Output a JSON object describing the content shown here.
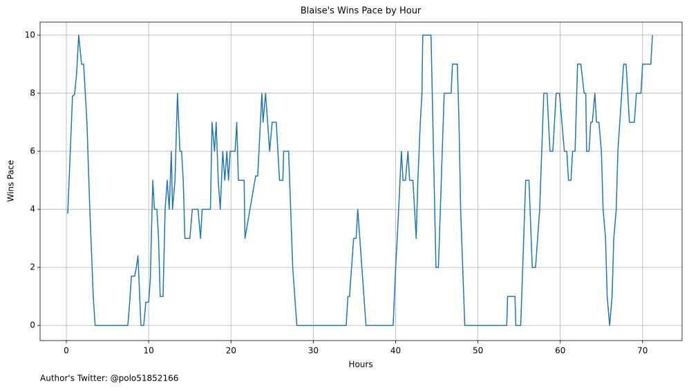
{
  "chart_data": {
    "type": "line",
    "title": "Blaise's Wins Pace by Hour",
    "xlabel": "Hours",
    "ylabel": "Wins Pace",
    "footer": "Author's Twitter: @polo51852166",
    "color": "#1f77b4",
    "grid": true,
    "x": [
      0.17,
      0.75,
      1.0,
      1.25,
      1.5,
      1.85,
      2.1,
      2.5,
      2.85,
      3.27,
      3.5,
      7.47,
      7.7,
      7.9,
      8.3,
      8.5,
      8.7,
      9.06,
      9.4,
      9.65,
      10.0,
      10.2,
      10.5,
      10.7,
      11.0,
      11.2,
      11.4,
      11.75,
      12.0,
      12.25,
      12.5,
      12.75,
      12.9,
      13.2,
      13.5,
      13.8,
      14.0,
      14.2,
      14.4,
      15.0,
      15.3,
      16.0,
      16.3,
      16.5,
      17.5,
      17.7,
      18.0,
      18.2,
      18.45,
      18.7,
      19.0,
      19.25,
      19.5,
      19.7,
      19.9,
      20.5,
      20.7,
      20.9,
      21.6,
      21.7,
      23.0,
      23.25,
      23.75,
      23.9,
      24.2,
      24.7,
      25.0,
      25.5,
      25.9,
      26.3,
      26.4,
      27.0,
      27.5,
      28.0,
      34.0,
      34.2,
      34.4,
      34.9,
      35.2,
      35.4,
      36.4,
      39.7,
      40.0,
      40.2,
      40.7,
      40.9,
      41.2,
      41.5,
      41.7,
      42.1,
      42.5,
      42.7,
      43.0,
      43.2,
      43.3,
      44.3,
      44.9,
      45.2,
      45.9,
      46.75,
      46.9,
      47.5,
      47.7,
      47.9,
      48.4,
      53.5,
      53.6,
      54.5,
      54.6,
      55.2,
      55.8,
      56.2,
      56.6,
      57.0,
      57.5,
      58.0,
      58.4,
      58.75,
      59.1,
      59.5,
      59.9,
      60.5,
      60.8,
      61.0,
      61.3,
      61.5,
      61.8,
      62.1,
      62.5,
      62.9,
      63.1,
      63.2,
      63.5,
      63.7,
      63.9,
      64.2,
      64.4,
      64.7,
      65.0,
      65.2,
      65.5,
      65.7,
      66.0,
      66.3,
      66.5,
      66.8,
      67.0,
      67.7,
      68.0,
      68.4,
      69.0,
      69.25,
      69.8,
      70.0,
      71.0,
      71.2
    ],
    "values": [
      3.85,
      7.9,
      7.95,
      8.7,
      10,
      9,
      9,
      7,
      4,
      1,
      0,
      0,
      0.8,
      1.7,
      1.7,
      2,
      2.4,
      0,
      0,
      0.8,
      0.8,
      1.6,
      5,
      4,
      4,
      3,
      1,
      1,
      4,
      5,
      4,
      6,
      4,
      5,
      8,
      6,
      6,
      5,
      3,
      3,
      4,
      4,
      3,
      4,
      4,
      7,
      6,
      7,
      5,
      4,
      6,
      5,
      6,
      5,
      6,
      6,
      7,
      5,
      5,
      3,
      5.15,
      5.15,
      8,
      7,
      8,
      6,
      7,
      7,
      5,
      5,
      6,
      6,
      2,
      0,
      0,
      1,
      1,
      3,
      3,
      4,
      0,
      0,
      2,
      3,
      6,
      5,
      5,
      6,
      5,
      5,
      3,
      5,
      7,
      8,
      10,
      10,
      2,
      2,
      8,
      8,
      9,
      9,
      7,
      4,
      0,
      0,
      1,
      1,
      0,
      0,
      5,
      5,
      2,
      2,
      4,
      8,
      8,
      6,
      6,
      8,
      8,
      6,
      6,
      5,
      5,
      6,
      6,
      9,
      9,
      8,
      8,
      6,
      6,
      7,
      7,
      8,
      7,
      7,
      6,
      4,
      3,
      1,
      0,
      1,
      3,
      4,
      6,
      9,
      9,
      7,
      7,
      8,
      8,
      9,
      9,
      10
    ],
    "xlim": [
      -3.19,
      74.8
    ],
    "ylim": [
      -0.52,
      10.45
    ],
    "xticks": [
      0,
      10,
      20,
      30,
      40,
      50,
      60,
      70
    ],
    "yticks": [
      0,
      2,
      4,
      6,
      8,
      10
    ]
  }
}
